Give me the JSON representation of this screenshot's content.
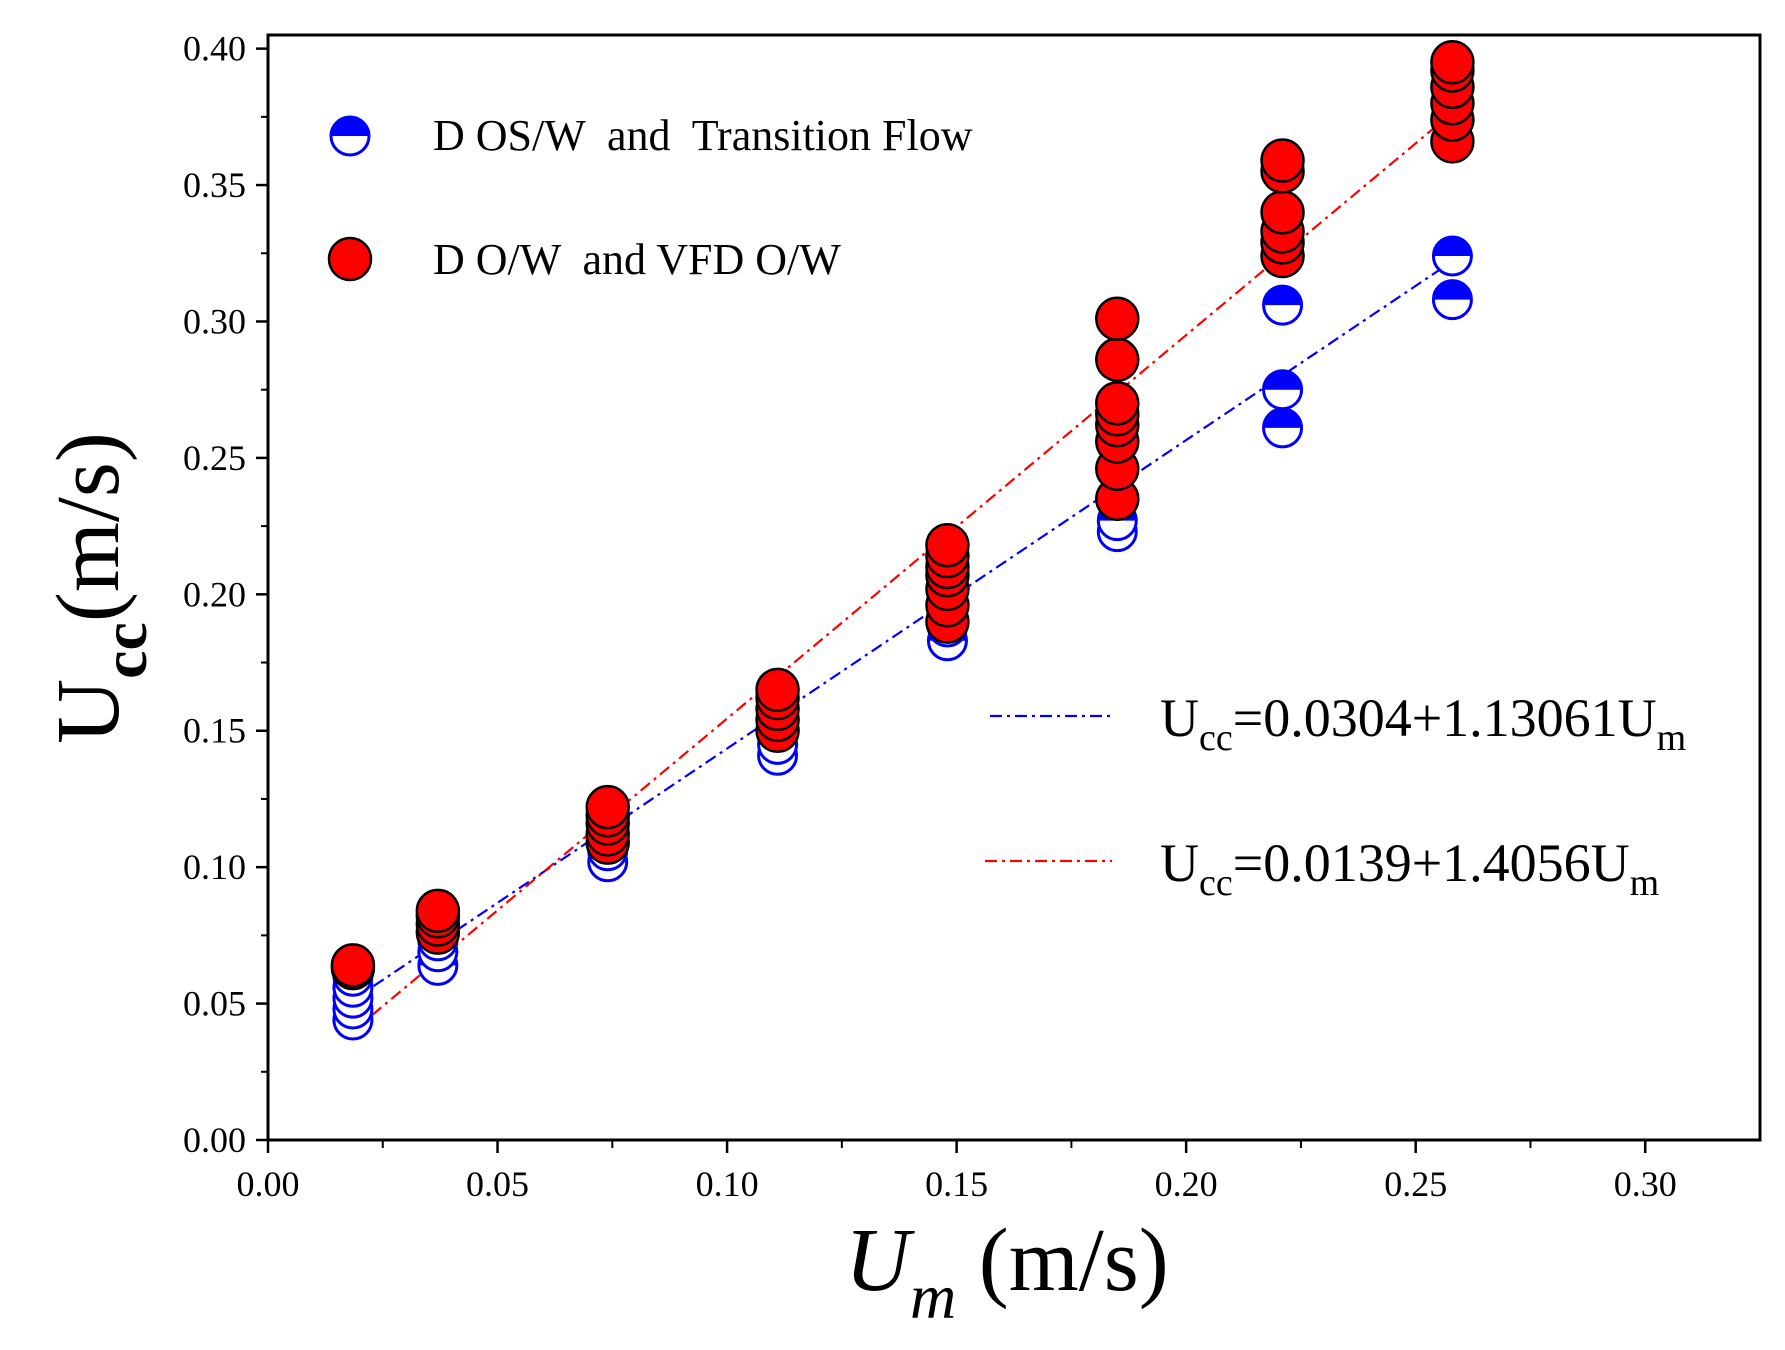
{
  "chart_data": {
    "type": "scatter",
    "xlabel": {
      "main": "U",
      "sub": "m",
      "unit": " (m/s)"
    },
    "ylabel": {
      "main": "U",
      "sub": "cc",
      "unit": "(m/s)"
    },
    "xlim": [
      0.0,
      0.325
    ],
    "ylim": [
      0.0,
      0.405
    ],
    "xticks": [
      0.0,
      0.05,
      0.1,
      0.15,
      0.2,
      0.25,
      0.3
    ],
    "xtick_labels": [
      "0.00",
      "0.05",
      "0.10",
      "0.15",
      "0.20",
      "0.25",
      "0.30"
    ],
    "yticks": [
      0.0,
      0.05,
      0.1,
      0.15,
      0.2,
      0.25,
      0.3,
      0.35,
      0.4
    ],
    "ytick_labels": [
      "0.00",
      "0.05",
      "0.10",
      "0.15",
      "0.20",
      "0.25",
      "0.30",
      "0.35",
      "0.40"
    ],
    "grid": false,
    "legend": {
      "placement": "top-left"
    },
    "series": [
      {
        "name": "D OS/W  and  Transition Flow",
        "marker": "half-filled-circle",
        "color": "#0000ff",
        "points": [
          [
            0.0185,
            0.044
          ],
          [
            0.0185,
            0.048
          ],
          [
            0.0185,
            0.052
          ],
          [
            0.0185,
            0.056
          ],
          [
            0.0185,
            0.06
          ],
          [
            0.037,
            0.064
          ],
          [
            0.037,
            0.069
          ],
          [
            0.037,
            0.073
          ],
          [
            0.074,
            0.102
          ],
          [
            0.074,
            0.106
          ],
          [
            0.074,
            0.11
          ],
          [
            0.111,
            0.141
          ],
          [
            0.111,
            0.145
          ],
          [
            0.111,
            0.15
          ],
          [
            0.148,
            0.183
          ],
          [
            0.148,
            0.188
          ],
          [
            0.148,
            0.193
          ],
          [
            0.185,
            0.223
          ],
          [
            0.185,
            0.227
          ],
          [
            0.221,
            0.261
          ],
          [
            0.221,
            0.275
          ],
          [
            0.221,
            0.306
          ],
          [
            0.258,
            0.308
          ],
          [
            0.258,
            0.324
          ]
        ]
      },
      {
        "name": "D O/W  and VFD O/W",
        "marker": "filled-circle",
        "color": "#ff0000",
        "points": [
          [
            0.0185,
            0.063
          ],
          [
            0.0185,
            0.064
          ],
          [
            0.037,
            0.076
          ],
          [
            0.037,
            0.079
          ],
          [
            0.037,
            0.082
          ],
          [
            0.037,
            0.084
          ],
          [
            0.074,
            0.109
          ],
          [
            0.074,
            0.112
          ],
          [
            0.074,
            0.116
          ],
          [
            0.074,
            0.119
          ],
          [
            0.074,
            0.122
          ],
          [
            0.111,
            0.15
          ],
          [
            0.111,
            0.154
          ],
          [
            0.111,
            0.158
          ],
          [
            0.111,
            0.162
          ],
          [
            0.111,
            0.165
          ],
          [
            0.148,
            0.19
          ],
          [
            0.148,
            0.196
          ],
          [
            0.148,
            0.202
          ],
          [
            0.148,
            0.207
          ],
          [
            0.148,
            0.21
          ],
          [
            0.148,
            0.214
          ],
          [
            0.148,
            0.218
          ],
          [
            0.185,
            0.235
          ],
          [
            0.185,
            0.246
          ],
          [
            0.185,
            0.256
          ],
          [
            0.185,
            0.262
          ],
          [
            0.185,
            0.266
          ],
          [
            0.185,
            0.27
          ],
          [
            0.185,
            0.286
          ],
          [
            0.185,
            0.301
          ],
          [
            0.221,
            0.324
          ],
          [
            0.221,
            0.329
          ],
          [
            0.221,
            0.333
          ],
          [
            0.221,
            0.34
          ],
          [
            0.221,
            0.355
          ],
          [
            0.221,
            0.359
          ],
          [
            0.258,
            0.366
          ],
          [
            0.258,
            0.374
          ],
          [
            0.258,
            0.38
          ],
          [
            0.258,
            0.386
          ],
          [
            0.258,
            0.392
          ],
          [
            0.258,
            0.395
          ]
        ]
      }
    ],
    "fit_lines": [
      {
        "name": "blue-fit",
        "color": "#0000ff",
        "intercept": 0.0304,
        "slope": 1.13061,
        "x_range": [
          0.0185,
          0.258
        ],
        "label_parts": {
          "u": "U",
          "sub": "cc",
          "eq": "=0.0304+1.13061U",
          "sub2": "m"
        }
      },
      {
        "name": "red-fit",
        "color": "#ff0000",
        "intercept": 0.0139,
        "slope": 1.4056,
        "x_range": [
          0.0185,
          0.258
        ],
        "label_parts": {
          "u": "U",
          "sub": "cc",
          "eq": "=0.0139+1.4056U",
          "sub2": "m"
        }
      }
    ]
  }
}
